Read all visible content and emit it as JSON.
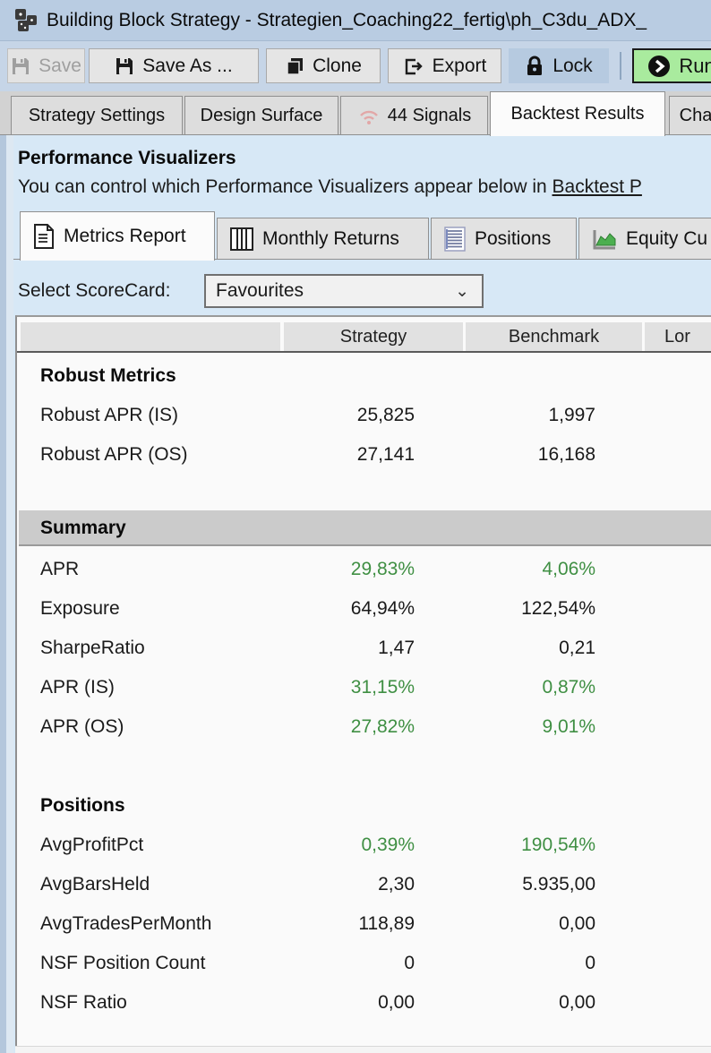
{
  "window": {
    "title": "Building Block Strategy - Strategien_Coaching22_fertig\\ph_C3du_ADX_",
    "icon": "building-blocks-icon"
  },
  "toolbar": {
    "buttons": [
      {
        "label": "Save",
        "icon": "save-icon",
        "state": "disabled"
      },
      {
        "label": "Save As ...",
        "icon": "save-as-icon",
        "state": "normal"
      },
      {
        "label": "Clone",
        "icon": "clone-icon",
        "state": "normal"
      },
      {
        "label": "Export",
        "icon": "export-icon",
        "state": "normal"
      },
      {
        "label": "Lock",
        "icon": "lock-icon",
        "state": "toggled"
      },
      {
        "label": "Run",
        "icon": "run-icon",
        "state": "primary"
      }
    ]
  },
  "main_tabs": [
    {
      "label": "Strategy Settings",
      "active": false
    },
    {
      "label": "Design Surface",
      "active": false
    },
    {
      "label": "44 Signals",
      "active": false,
      "icon": "signal-icon"
    },
    {
      "label": "Backtest Results",
      "active": true
    },
    {
      "label": "Cha",
      "active": false
    }
  ],
  "panel": {
    "title": "Performance Visualizers",
    "description": "You can control which Performance Visualizers appear below in ",
    "link_text": "Backtest P"
  },
  "visualizer_tabs": [
    {
      "label": "Metrics Report",
      "icon": "report-icon",
      "active": true
    },
    {
      "label": "Monthly Returns",
      "icon": "columns-icon",
      "active": false
    },
    {
      "label": "Positions",
      "icon": "positions-list-icon",
      "active": false
    },
    {
      "label": "Equity Cu",
      "icon": "equity-chart-icon",
      "active": false
    }
  ],
  "scorecard": {
    "label": "Select ScoreCard:",
    "selected": "Favourites"
  },
  "metrics_table": {
    "columns": [
      "",
      "Strategy",
      "Benchmark",
      "Lor"
    ],
    "rows": [
      {
        "type": "section",
        "label": "Robust Metrics"
      },
      {
        "type": "data",
        "label": "Robust APR (IS)",
        "strategy": "25,825",
        "benchmark": "1,997",
        "green": false
      },
      {
        "type": "data",
        "label": "Robust APR (OS)",
        "strategy": "27,141",
        "benchmark": "16,168",
        "green": false
      },
      {
        "type": "spacer",
        "h": 40
      },
      {
        "type": "band",
        "label": "Summary"
      },
      {
        "type": "data",
        "label": "APR",
        "strategy": "29,83%",
        "benchmark": "4,06%",
        "green": true
      },
      {
        "type": "data",
        "label": "Exposure",
        "strategy": "64,94%",
        "benchmark": "122,54%",
        "green": false
      },
      {
        "type": "data",
        "label": "SharpeRatio",
        "strategy": "1,47",
        "benchmark": "0,21",
        "green": false
      },
      {
        "type": "data",
        "label": "APR (IS)",
        "strategy": "31,15%",
        "benchmark": "0,87%",
        "green": true
      },
      {
        "type": "data",
        "label": "APR (OS)",
        "strategy": "27,82%",
        "benchmark": "9,01%",
        "green": true
      },
      {
        "type": "spacer",
        "h": 44
      },
      {
        "type": "section",
        "label": "Positions"
      },
      {
        "type": "data",
        "label": "AvgProfitPct",
        "strategy": "0,39%",
        "benchmark": "190,54%",
        "green": true
      },
      {
        "type": "data",
        "label": "AvgBarsHeld",
        "strategy": "2,30",
        "benchmark": "5.935,00",
        "green": false
      },
      {
        "type": "data",
        "label": "AvgTradesPerMonth",
        "strategy": "118,89",
        "benchmark": "0,00",
        "green": false
      },
      {
        "type": "data",
        "label": "NSF Position Count",
        "strategy": "0",
        "benchmark": "0",
        "green": false
      },
      {
        "type": "data",
        "label": "NSF Ratio",
        "strategy": "0,00",
        "benchmark": "0,00",
        "green": false
      }
    ]
  },
  "colors": {
    "titlebar_bg": "#b9cce2",
    "toolbar_bg": "#c6d5e7",
    "content_bg": "#d7e8f6",
    "lock_toggled_bg": "#b6cae0",
    "run_bg": "#a9eb9e",
    "positive_value_green": "#3f8f43",
    "summary_band_bg": "#cbcbcb",
    "equity_icon_green": "#4caf50",
    "signal_icon_pink": "#e2a7a7"
  }
}
